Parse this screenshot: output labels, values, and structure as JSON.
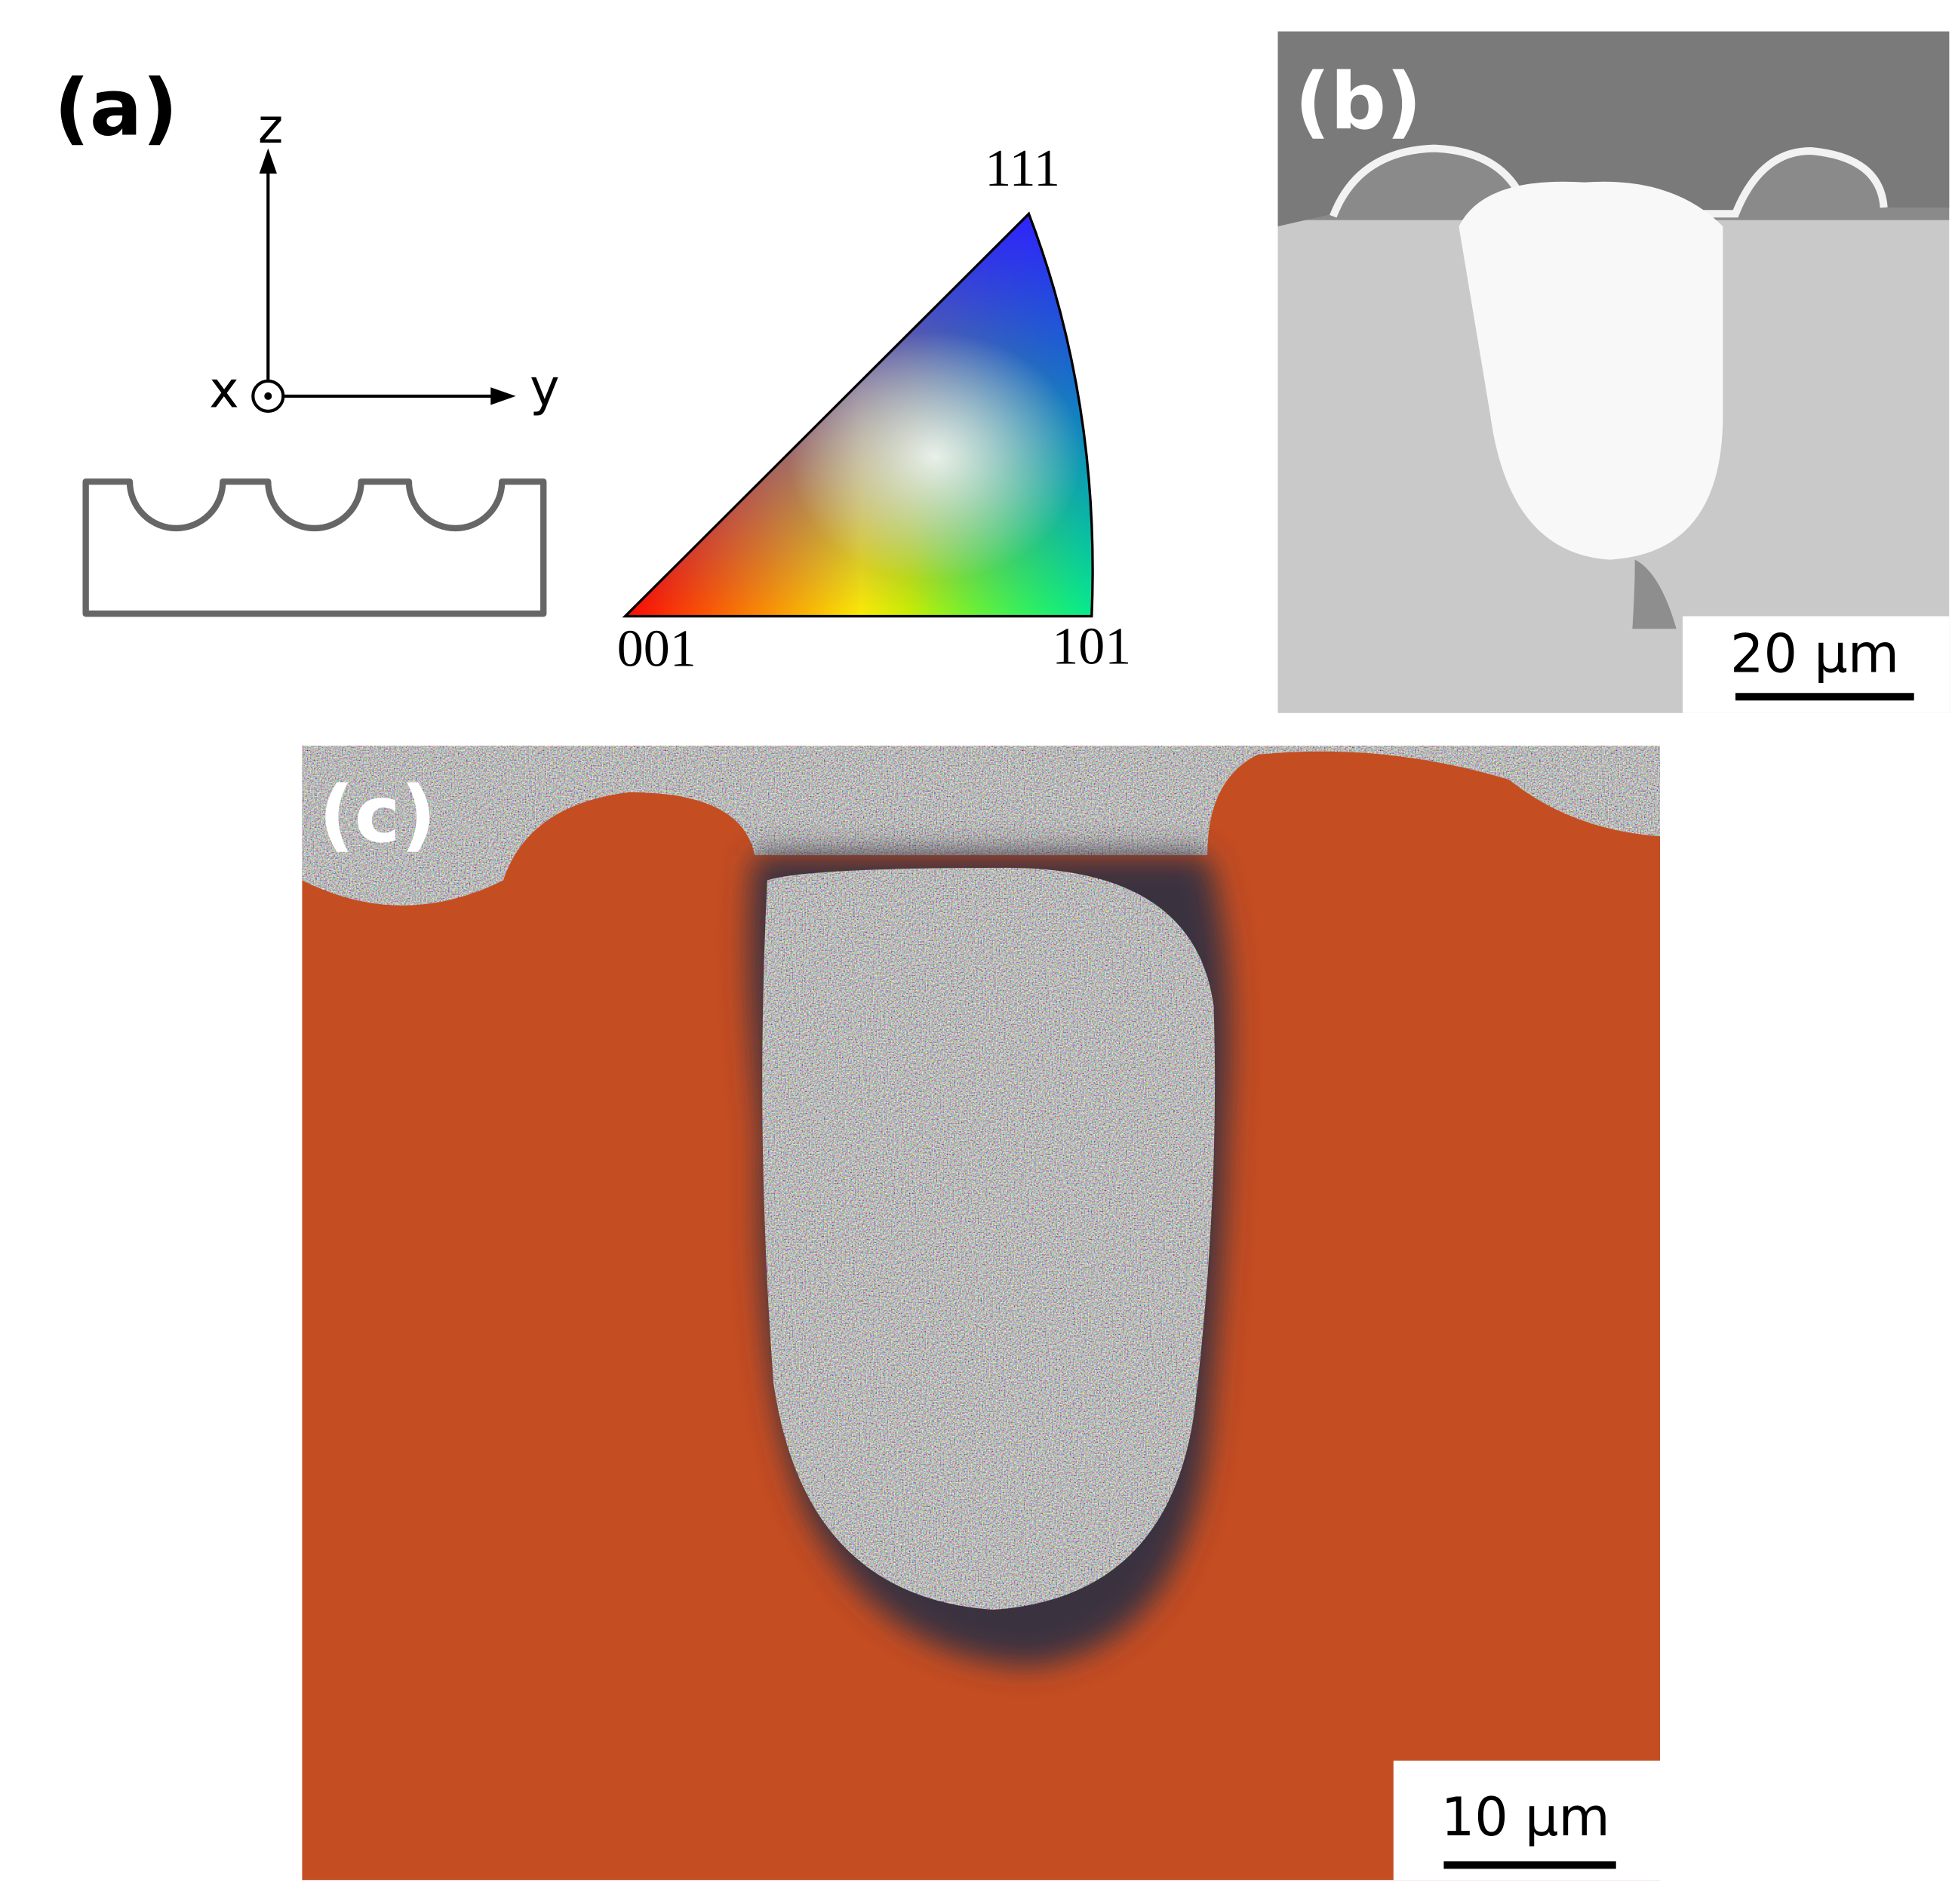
{
  "panel_a": {
    "label": "(a)",
    "axis_z": "z",
    "axis_x": "x",
    "axis_y": "y",
    "ipf_corner_top": "111",
    "ipf_corner_left": "001",
    "ipf_corner_right": "101"
  },
  "panel_b": {
    "label": "(b)",
    "scale_bar": "20 µm"
  },
  "panel_c": {
    "label": "(c)",
    "scale_bar": "10 µm"
  }
}
